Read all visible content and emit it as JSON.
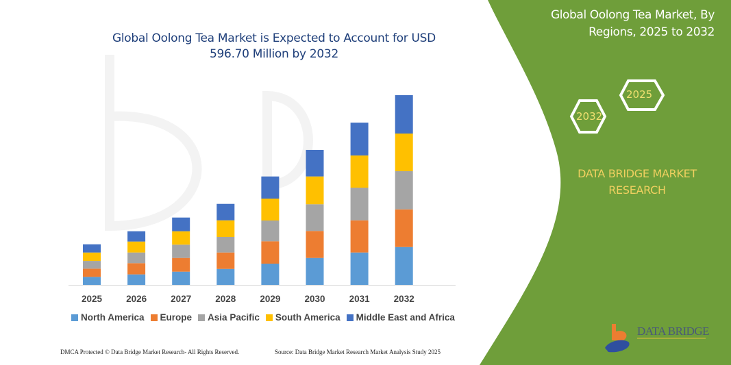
{
  "chart_data": {
    "type": "bar",
    "stacked": true,
    "title": "Global Oolong Tea Market is Expected to Account for USD 596.70 Million by 2032",
    "categories": [
      "2025",
      "2026",
      "2027",
      "2028",
      "2029",
      "2030",
      "2031",
      "2032"
    ],
    "series": [
      {
        "name": "North America",
        "color": "#5b9bd5",
        "values": [
          25.2,
          33.0,
          41.6,
          50.2,
          66.8,
          84.7,
          101.9,
          119.1
        ]
      },
      {
        "name": "Europe",
        "color": "#ed7d31",
        "values": [
          25.8,
          35.3,
          43.1,
          51.7,
          70.4,
          84.9,
          101.2,
          118.5
        ]
      },
      {
        "name": "Asia Pacific",
        "color": "#a5a5a5",
        "values": [
          24.3,
          33.6,
          41.8,
          48.9,
          65.3,
          84.0,
          102.7,
          120.0
        ]
      },
      {
        "name": "South America",
        "color": "#ffc000",
        "values": [
          26.5,
          34.5,
          42.2,
          52.3,
          68.9,
          87.5,
          101.2,
          118.5
        ]
      },
      {
        "name": "Middle East and Africa",
        "color": "#4472c4",
        "values": [
          25.8,
          32.3,
          43.1,
          51.7,
          69.6,
          83.4,
          103.4,
          120.6
        ]
      }
    ],
    "ylim": [
      0,
      600
    ],
    "grid": false,
    "y_axis_visible": false,
    "legend_placement": "bottom"
  },
  "side_panel": {
    "title": "Global Oolong Tea Market, By Regions, 2025 to 2032",
    "hex_years": [
      "2025",
      "2032"
    ],
    "brand": "DATA BRIDGE MARKET RESEARCH",
    "logo_text": "DATA BRIDGE",
    "panel_color": "#6f9e3a"
  },
  "footer": {
    "copyright": "DMCA Protected © Data Bridge Market Research-  All Rights Reserved.",
    "source": "Source: Data Bridge Market Research  Market Analysis Study 2025"
  }
}
